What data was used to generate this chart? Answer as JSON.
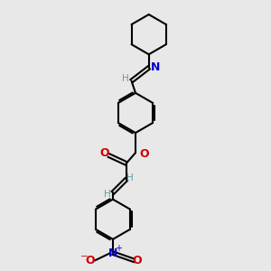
{
  "bg_color": "#e8e8e8",
  "bond_color": "#000000",
  "h_color": "#5f9ea0",
  "nitrogen_color": "#0000cc",
  "oxygen_color": "#cc0000",
  "line_width": 1.5,
  "fig_width": 3.0,
  "fig_height": 3.0,
  "dpi": 100,
  "xlim": [
    0,
    10
  ],
  "ylim": [
    0,
    10
  ]
}
